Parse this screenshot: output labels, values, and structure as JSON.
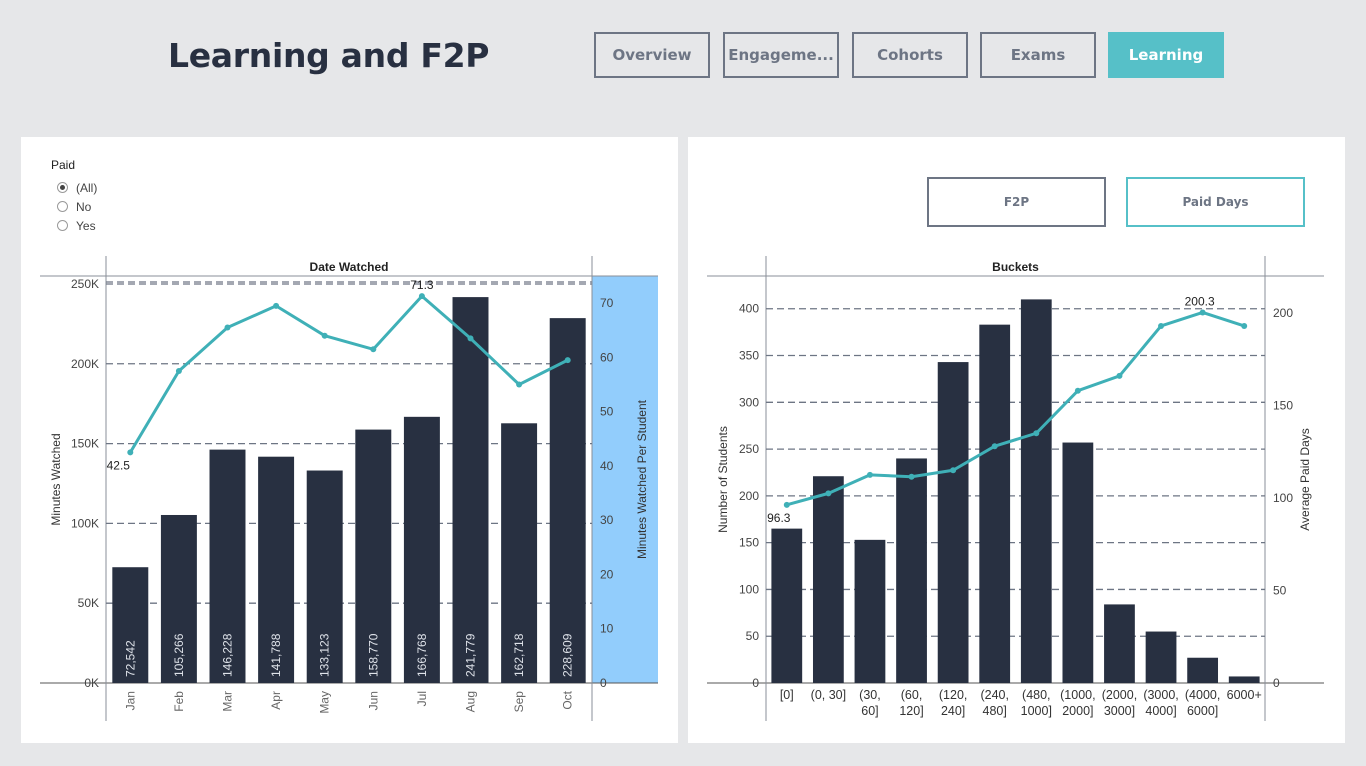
{
  "header": {
    "title": "Learning and F2P",
    "tabs": [
      {
        "label": "Overview",
        "active": false
      },
      {
        "label": "Engageme...",
        "active": false
      },
      {
        "label": "Cohorts",
        "active": false
      },
      {
        "label": "Exams",
        "active": false
      },
      {
        "label": "Learning",
        "active": true
      }
    ]
  },
  "filter": {
    "title": "Paid",
    "options": [
      {
        "label": "(All)",
        "checked": true
      },
      {
        "label": "No",
        "checked": false
      },
      {
        "label": "Yes",
        "checked": false
      }
    ]
  },
  "toggles": {
    "f2p_label": "F2P",
    "paid_days_label": "Paid Days"
  },
  "colors": {
    "bar": "#283041",
    "line": "#3fb0b7",
    "highlight": "#92cdfc",
    "grid": "#6d7584"
  },
  "chart_data": [
    {
      "type": "bar",
      "title": "Date Watched",
      "categories": [
        "Jan",
        "Feb",
        "Mar",
        "Apr",
        "May",
        "Jun",
        "Jul",
        "Aug",
        "Sep",
        "Oct"
      ],
      "value_labels": [
        "72,542",
        "105,266",
        "146,228",
        "141,788",
        "133,123",
        "158,770",
        "166,768",
        "241,779",
        "162,718",
        "228,609"
      ],
      "series": [
        {
          "name": "Minutes Watched",
          "axis": "left",
          "type": "bar",
          "values": [
            72542,
            105266,
            146228,
            141788,
            133123,
            158770,
            166768,
            241779,
            162718,
            228609
          ]
        },
        {
          "name": "Minutes Watched Per Student",
          "axis": "right",
          "type": "line",
          "values": [
            42.5,
            57.5,
            65.5,
            69.5,
            64.0,
            61.5,
            71.3,
            63.5,
            55.0,
            59.5
          ]
        }
      ],
      "ylabel": "Minutes Watched",
      "y2label": "Minutes Watched Per Student",
      "ylim": [
        0,
        255000
      ],
      "y2lim": [
        0,
        75
      ],
      "yticks": [
        0,
        50000,
        100000,
        150000,
        200000,
        250000
      ],
      "ytick_labels": [
        "0K",
        "50K",
        "100K",
        "150K",
        "200K",
        "250K"
      ],
      "y2ticks": [
        0,
        10,
        20,
        30,
        40,
        50,
        60,
        70
      ],
      "y2tick_labels": [
        "0",
        "10",
        "20",
        "30",
        "40",
        "50",
        "60",
        "70"
      ],
      "line_annotations": [
        {
          "index": 0,
          "text": "42.5"
        },
        {
          "index": 6,
          "text": "71.3"
        }
      ],
      "grid": true
    },
    {
      "type": "bar",
      "title": "Buckets",
      "categories": [
        "[0]",
        "(0, 30]",
        "(30, 60]",
        "(60, 120]",
        "(120, 240]",
        "(240, 480]",
        "(480, 1000]",
        "(1000, 2000]",
        "(2000, 3000]",
        "(3000, 4000]",
        "(4000, 6000]",
        "6000+"
      ],
      "category_lines": [
        [
          "[0]"
        ],
        [
          "(0, 30]"
        ],
        [
          "(30,",
          "60]"
        ],
        [
          "(60,",
          "120]"
        ],
        [
          "(120,",
          "240]"
        ],
        [
          "(240,",
          "480]"
        ],
        [
          "(480,",
          "1000]"
        ],
        [
          "(1000,",
          "2000]"
        ],
        [
          "(2000,",
          "3000]"
        ],
        [
          "(3000,",
          "4000]"
        ],
        [
          "(4000,",
          "6000]"
        ],
        [
          "6000+"
        ]
      ],
      "series": [
        {
          "name": "Number of Students",
          "axis": "left",
          "type": "bar",
          "values": [
            165,
            221,
            153,
            240,
            343,
            383,
            410,
            257,
            84,
            55,
            27,
            7
          ]
        },
        {
          "name": "Average Paid Days",
          "axis": "right",
          "type": "line",
          "values": [
            96.3,
            102.5,
            112.5,
            111.5,
            115.0,
            128.0,
            135.0,
            158.0,
            166.0,
            193.0,
            200.3,
            193.0
          ]
        }
      ],
      "ylabel": "Number of Students",
      "y2label": "Average Paid Days",
      "ylim": [
        0,
        435
      ],
      "y2lim": [
        0,
        220
      ],
      "yticks": [
        0,
        50,
        100,
        150,
        200,
        250,
        300,
        350,
        400
      ],
      "ytick_labels": [
        "0",
        "50",
        "100",
        "150",
        "200",
        "250",
        "300",
        "350",
        "400"
      ],
      "y2ticks": [
        0,
        50,
        100,
        150,
        200
      ],
      "y2tick_labels": [
        "0",
        "50",
        "100",
        "150",
        "200"
      ],
      "line_annotations": [
        {
          "index": 0,
          "text": "96.3"
        },
        {
          "index": 10,
          "text": "200.3"
        }
      ],
      "grid": true
    }
  ]
}
